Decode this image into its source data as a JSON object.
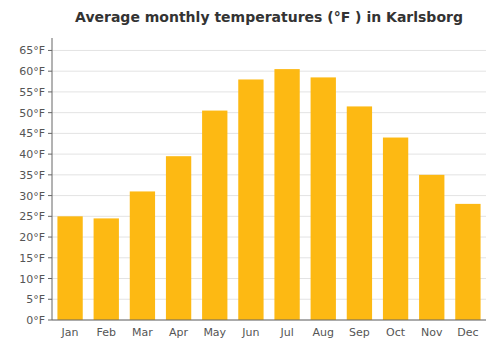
{
  "chart_data": {
    "type": "bar",
    "title": "Average monthly temperatures (°F ) in Karlsborg",
    "categories": [
      "Jan",
      "Feb",
      "Mar",
      "Apr",
      "May",
      "Jun",
      "Jul",
      "Aug",
      "Sep",
      "Oct",
      "Nov",
      "Dec"
    ],
    "values": [
      25.0,
      24.5,
      31.0,
      39.5,
      50.5,
      58.0,
      60.5,
      58.5,
      51.5,
      44.0,
      35.0,
      28.0
    ],
    "color": "#FDB913",
    "ylim": [
      0,
      68
    ],
    "yticks": [
      {
        "value": 0,
        "label": "0°F"
      },
      {
        "value": 5,
        "label": "5°F"
      },
      {
        "value": 10,
        "label": "10°F"
      },
      {
        "value": 15,
        "label": "15°F"
      },
      {
        "value": 20,
        "label": "20°F"
      },
      {
        "value": 25,
        "label": "25°F"
      },
      {
        "value": 30,
        "label": "30°F"
      },
      {
        "value": 35,
        "label": "35°F"
      },
      {
        "value": 40,
        "label": "40°F"
      },
      {
        "value": 45,
        "label": "45°F"
      },
      {
        "value": 50,
        "label": "50°F"
      },
      {
        "value": 55,
        "label": "55°F"
      },
      {
        "value": 60,
        "label": "60°F"
      },
      {
        "value": 65,
        "label": "65°F"
      }
    ],
    "grid": true
  }
}
